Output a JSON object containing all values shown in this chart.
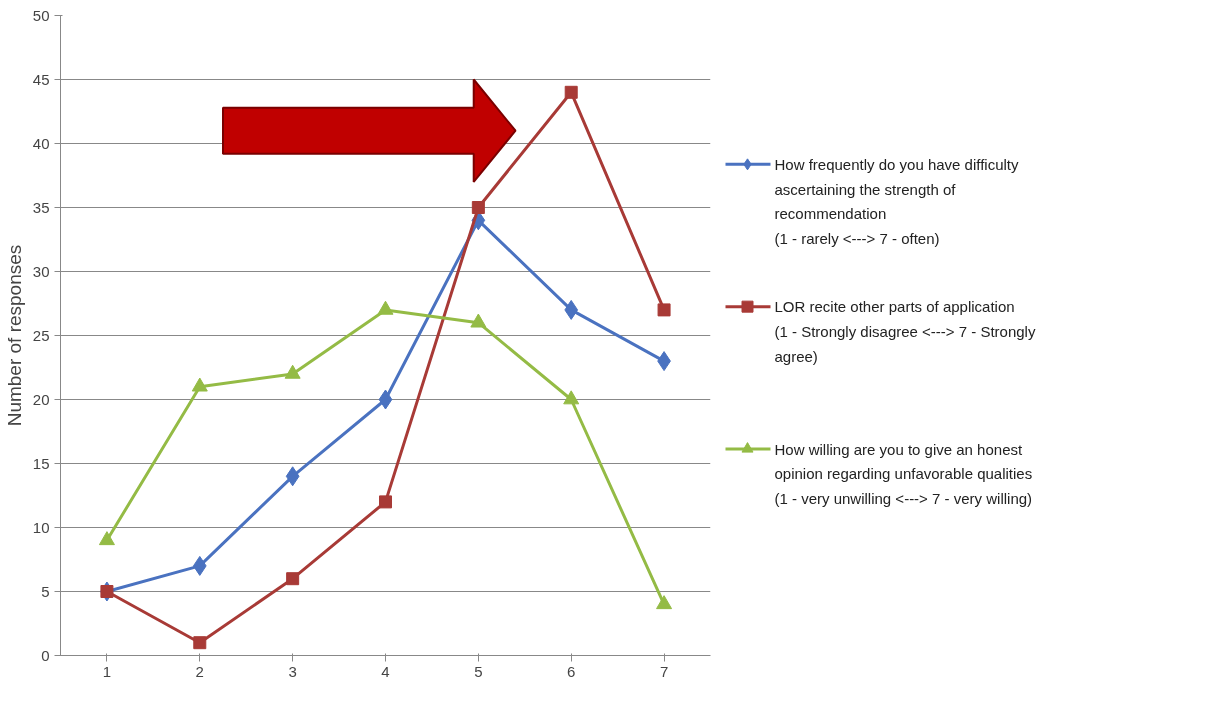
{
  "chart_data": {
    "type": "line",
    "ylabel": "Number of responses",
    "categories": [
      "1",
      "2",
      "3",
      "4",
      "5",
      "6",
      "7"
    ],
    "ylim": [
      0,
      50
    ],
    "yticks": [
      0,
      5,
      10,
      15,
      20,
      25,
      30,
      35,
      40,
      45,
      50
    ],
    "grid": "y",
    "legend": "right",
    "series": [
      {
        "name": "How frequently do you have difficulty\nascertaining the strength of\nrecommendation\n(1 - rarely <---> 7 - often)",
        "color": "#4a72c0",
        "marker": "diamond",
        "values": [
          5,
          7,
          14,
          20,
          34,
          27,
          23
        ]
      },
      {
        "name": "LOR recite other parts of application\n(1 - Strongly disagree <---> 7 - Strongly\nagree)",
        "color": "#a83a36",
        "marker": "square",
        "values": [
          5,
          1,
          6,
          12,
          35,
          44,
          27
        ]
      },
      {
        "name": "How willing are you to give an honest\nopinion regarding unfavorable qualities\n(1 - very unwilling <--->  7 - very willing)",
        "color": "#94bb45",
        "marker": "triangle",
        "values": [
          9,
          21,
          22,
          27,
          26,
          20,
          4
        ]
      }
    ]
  }
}
